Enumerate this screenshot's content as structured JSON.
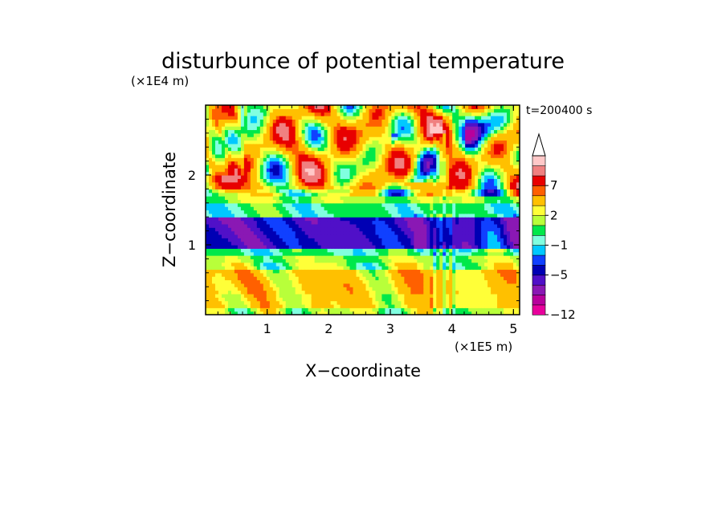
{
  "chart_data": {
    "type": "heatmap",
    "title": "disturbunce of potential temperature",
    "xlabel": "X−coordinate",
    "ylabel": "Z−coordinate",
    "x_unit": "(×1E5 m)",
    "y_unit": "(×1E4 m)",
    "time_label": "t=200400 s",
    "xlim": [
      0,
      5.1
    ],
    "ylim": [
      0,
      3.0
    ],
    "x_ticks": [
      1,
      2,
      3,
      4,
      5
    ],
    "y_ticks": [
      1,
      2
    ],
    "x_tick_labels": [
      "1",
      "2",
      "3",
      "4",
      "5"
    ],
    "y_tick_labels": [
      "1",
      "2"
    ],
    "colorbar": {
      "colors": [
        "#e8009c",
        "#b8009c",
        "#8a18b4",
        "#5010c8",
        "#0000b4",
        "#1040ff",
        "#00c8ff",
        "#80ffe0",
        "#00e84a",
        "#b8ff3a",
        "#ffff38",
        "#ffc000",
        "#ff6000",
        "#e80000",
        "#f08080",
        "#ffc8c8"
      ],
      "labels": [
        "−12",
        "−5",
        "−1",
        "2",
        "7"
      ],
      "label_bands": [
        0,
        4,
        7,
        10,
        13
      ],
      "extend_max": true
    },
    "bands": [
      {
        "z": [
          0.0,
          0.12
        ],
        "value": 0.5,
        "desc": "surface"
      },
      {
        "z": [
          0.12,
          0.3
        ],
        "value": 2.0,
        "desc": "yellow"
      },
      {
        "z": [
          0.3,
          0.65
        ],
        "value": 2.5,
        "desc": "yellow-orange layer"
      },
      {
        "z": [
          0.65,
          0.85
        ],
        "value": 0.3,
        "desc": "green"
      },
      {
        "z": [
          0.85,
          0.95
        ],
        "value": -1.0,
        "desc": "cyan"
      },
      {
        "z": [
          0.95,
          1.4
        ],
        "value": -5.0,
        "desc": "blue layer"
      },
      {
        "z": [
          1.4,
          1.6
        ],
        "value": -1.0,
        "desc": "cyan"
      },
      {
        "z": [
          1.6,
          1.8
        ],
        "value": 0.5,
        "desc": "green"
      },
      {
        "z": [
          1.8,
          3.0
        ],
        "value": 2.5,
        "desc": "upper layer with waves"
      }
    ]
  }
}
